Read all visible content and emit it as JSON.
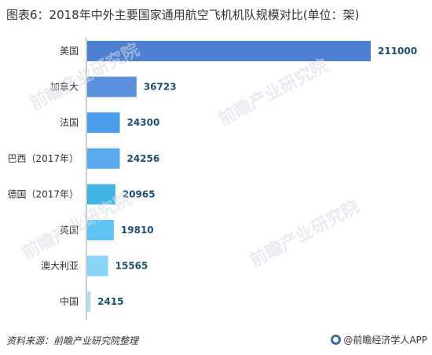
{
  "title": "图表6：2018年中外主要国家通用航空飞机机队规模对比(单位：架)",
  "footer": {
    "source": "资料来源：前瞻产业研究院整理",
    "brand": "@前瞻经济学人APP"
  },
  "watermark": "前瞻产业研究院",
  "chart_data": {
    "type": "bar",
    "orientation": "horizontal",
    "title": "图表6：2018年中外主要国家通用航空飞机机队规模对比(单位：架)",
    "categories": [
      "美国",
      "加拿大",
      "法国",
      "巴西（2017年）",
      "德国（2017年）",
      "英国",
      "澳大利亚",
      "中国"
    ],
    "values": [
      211000,
      36723,
      24300,
      24256,
      20965,
      19810,
      15565,
      2415
    ],
    "value_labels": [
      "211000",
      "36723",
      "24300",
      "24256",
      "20965",
      "19810",
      "15565",
      "2415"
    ],
    "colors": [
      "#4e7fd1",
      "#5a90dc",
      "#4a9cea",
      "#5aa9ec",
      "#42b4e6",
      "#5ec4f2",
      "#86d4f6",
      "#a9def4"
    ],
    "xlim": [
      0,
      211000
    ],
    "grid": false,
    "legend": "none"
  }
}
